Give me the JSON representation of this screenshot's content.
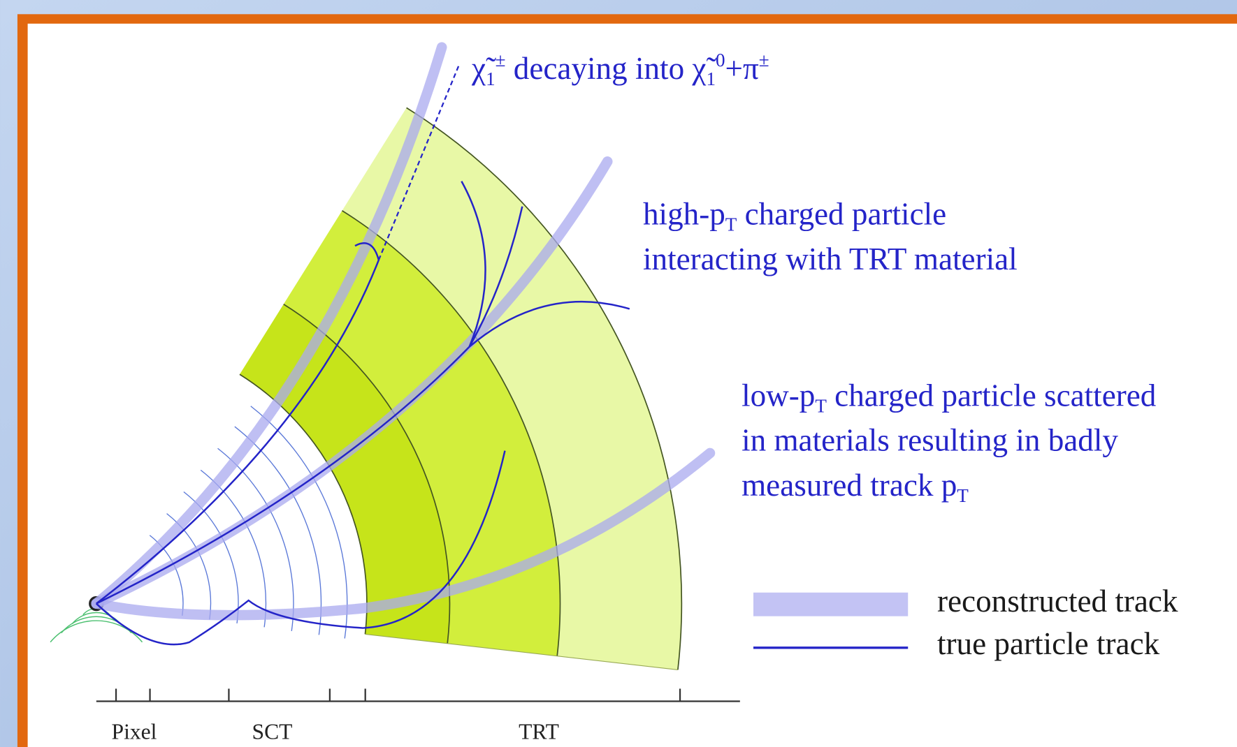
{
  "annotations": {
    "chargino": [
      "χ̃",
      "1",
      "±",
      " decaying into ",
      "χ̃",
      "1",
      "0",
      "+π",
      "±"
    ],
    "high_pt": [
      [
        "high-p",
        "T",
        " charged particle"
      ],
      [
        "interacting with TRT material"
      ]
    ],
    "low_pt": [
      [
        "low-p",
        "T",
        " charged particle scattered"
      ],
      [
        "in materials resulting in badly"
      ],
      [
        "measured track p",
        "T"
      ]
    ]
  },
  "legend": [
    "reconstructed track",
    "true particle track"
  ],
  "detector_labels": [
    "Pixel",
    "SCT",
    "TRT"
  ]
}
